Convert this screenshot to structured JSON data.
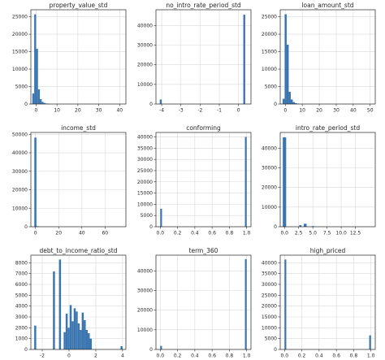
{
  "figure": {
    "bar_color": "#3b75af",
    "grid_color": "#d9d9d9",
    "axes_edge_color": "#262626",
    "layout": "3x3 grid of histograms",
    "grid": true
  },
  "chart_data": [
    {
      "type": "bar",
      "title": "property_value_std",
      "xlabel": "",
      "ylabel": "",
      "xlim": [
        -2.5,
        43
      ],
      "ylim": [
        0,
        27000
      ],
      "xticks": [
        0,
        10,
        20,
        30,
        40
      ],
      "yticks": [
        0,
        5000,
        10000,
        15000,
        20000,
        25000
      ],
      "bins": [
        {
          "x0": -1.8,
          "x1": -0.9,
          "value": 3000
        },
        {
          "x0": -0.9,
          "x1": 0.0,
          "value": 25700
        },
        {
          "x0": 0.0,
          "x1": 0.9,
          "value": 15800
        },
        {
          "x0": 0.9,
          "x1": 1.8,
          "value": 4200
        },
        {
          "x0": 1.8,
          "x1": 2.7,
          "value": 1400
        },
        {
          "x0": 2.7,
          "x1": 3.6,
          "value": 600
        },
        {
          "x0": 3.6,
          "x1": 4.5,
          "value": 300
        },
        {
          "x0": 4.5,
          "x1": 5.4,
          "value": 150
        },
        {
          "x0": 5.4,
          "x1": 6.3,
          "value": 80
        }
      ]
    },
    {
      "type": "bar",
      "title": "no_intro_rate_period_std",
      "xlabel": "",
      "ylabel": "",
      "xlim": [
        -4.3,
        0.65
      ],
      "ylim": [
        0,
        48000
      ],
      "xticks": [
        -4,
        -3,
        -2,
        -1,
        0
      ],
      "yticks": [
        0,
        10000,
        20000,
        30000,
        40000
      ],
      "bins": [
        {
          "x0": -4.1,
          "x1": -4.0,
          "value": 2300
        },
        {
          "x0": 0.25,
          "x1": 0.35,
          "value": 45500
        }
      ]
    },
    {
      "type": "bar",
      "title": "loan_amount_std",
      "xlabel": "",
      "ylabel": "",
      "xlim": [
        -3,
        53
      ],
      "ylim": [
        0,
        27000
      ],
      "xticks": [
        0,
        10,
        20,
        30,
        40,
        50
      ],
      "yticks": [
        0,
        5000,
        10000,
        15000,
        20000,
        25000
      ],
      "bins": [
        {
          "x0": -1.6,
          "x1": -0.4,
          "value": 1500
        },
        {
          "x0": -0.4,
          "x1": 0.8,
          "value": 25700
        },
        {
          "x0": 0.8,
          "x1": 2.0,
          "value": 17000
        },
        {
          "x0": 2.0,
          "x1": 3.2,
          "value": 3500
        },
        {
          "x0": 3.2,
          "x1": 4.4,
          "value": 1300
        },
        {
          "x0": 4.4,
          "x1": 5.6,
          "value": 550
        },
        {
          "x0": 5.6,
          "x1": 6.8,
          "value": 250
        },
        {
          "x0": 6.8,
          "x1": 8.0,
          "value": 120
        }
      ]
    },
    {
      "type": "bar",
      "title": "income_std",
      "xlabel": "",
      "ylabel": "",
      "xlim": [
        -4,
        78
      ],
      "ylim": [
        0,
        51000
      ],
      "xticks": [
        0,
        20,
        40,
        60
      ],
      "yticks": [
        0,
        10000,
        20000,
        30000,
        40000,
        50000
      ],
      "bins": [
        {
          "x0": -1.0,
          "x1": 0.8,
          "value": 48200
        },
        {
          "x0": 0.8,
          "x1": 2.6,
          "value": 300
        }
      ]
    },
    {
      "type": "bar",
      "title": "conforming",
      "xlabel": "",
      "ylabel": "",
      "xlim": [
        -0.05,
        1.05
      ],
      "ylim": [
        0,
        42000
      ],
      "xticks": [
        0.0,
        0.2,
        0.4,
        0.6,
        0.8,
        1.0
      ],
      "tick_labels": [
        "0.0",
        "0.2",
        "0.4",
        "0.6",
        "0.8",
        "1.0"
      ],
      "yticks": [
        0,
        5000,
        10000,
        15000,
        20000,
        25000,
        30000,
        35000,
        40000
      ],
      "bins": [
        {
          "x0": 0.0,
          "x1": 0.02,
          "value": 8000
        },
        {
          "x0": 0.98,
          "x1": 1.0,
          "value": 40000
        }
      ]
    },
    {
      "type": "bar",
      "title": "intro_rate_period_std",
      "xlabel": "",
      "ylabel": "",
      "xlim": [
        -0.75,
        16
      ],
      "ylim": [
        0,
        48000
      ],
      "xticks": [
        0.0,
        2.5,
        5.0,
        7.5,
        10.0,
        12.5
      ],
      "tick_labels": [
        "0.0",
        "2.5",
        "5.0",
        "7.5",
        "10.0",
        "12.5"
      ],
      "yticks": [
        0,
        10000,
        20000,
        30000,
        40000
      ],
      "bins": [
        {
          "x0": -0.3,
          "x1": 0.3,
          "value": 45500
        },
        {
          "x0": 2.6,
          "x1": 3.0,
          "value": 800
        },
        {
          "x0": 3.4,
          "x1": 3.9,
          "value": 1500
        },
        {
          "x0": 4.8,
          "x1": 5.2,
          "value": 300
        }
      ]
    },
    {
      "type": "bar",
      "title": "debt_to_income_ratio_std",
      "xlabel": "",
      "ylabel": "",
      "xlim": [
        -2.85,
        4.25
      ],
      "ylim": [
        0,
        8700
      ],
      "xticks": [
        -2,
        0,
        2,
        4
      ],
      "yticks": [
        0,
        1000,
        2000,
        3000,
        4000,
        5000,
        6000,
        7000,
        8000
      ],
      "bins": [
        {
          "x0": -2.6,
          "x1": -2.45,
          "value": 2200
        },
        {
          "x0": -1.2,
          "x1": -1.05,
          "value": 7200
        },
        {
          "x0": -0.75,
          "x1": -0.6,
          "value": 8300
        },
        {
          "x0": -0.4,
          "x1": -0.25,
          "value": 1600
        },
        {
          "x0": -0.25,
          "x1": -0.1,
          "value": 3300
        },
        {
          "x0": -0.1,
          "x1": 0.05,
          "value": 2000
        },
        {
          "x0": 0.05,
          "x1": 0.2,
          "value": 4100
        },
        {
          "x0": 0.2,
          "x1": 0.35,
          "value": 2600
        },
        {
          "x0": 0.35,
          "x1": 0.5,
          "value": 3800
        },
        {
          "x0": 0.5,
          "x1": 0.65,
          "value": 3500
        },
        {
          "x0": 0.65,
          "x1": 0.8,
          "value": 2400
        },
        {
          "x0": 0.8,
          "x1": 0.95,
          "value": 1800
        },
        {
          "x0": 0.95,
          "x1": 1.1,
          "value": 3400
        },
        {
          "x0": 1.1,
          "x1": 1.25,
          "value": 2700
        },
        {
          "x0": 1.25,
          "x1": 1.4,
          "value": 1800
        },
        {
          "x0": 1.4,
          "x1": 1.55,
          "value": 1500
        },
        {
          "x0": 1.55,
          "x1": 1.7,
          "value": 1000
        },
        {
          "x0": 3.85,
          "x1": 4.0,
          "value": 300
        }
      ]
    },
    {
      "type": "bar",
      "title": "term_360",
      "xlabel": "",
      "ylabel": "",
      "xlim": [
        -0.05,
        1.05
      ],
      "ylim": [
        0,
        48000
      ],
      "xticks": [
        0.0,
        0.2,
        0.4,
        0.6,
        0.8,
        1.0
      ],
      "tick_labels": [
        "0.0",
        "0.2",
        "0.4",
        "0.6",
        "0.8",
        "1.0"
      ],
      "yticks": [
        0,
        10000,
        20000,
        30000,
        40000
      ],
      "bins": [
        {
          "x0": 0.0,
          "x1": 0.02,
          "value": 1800
        },
        {
          "x0": 0.98,
          "x1": 1.0,
          "value": 46000
        }
      ]
    },
    {
      "type": "bar",
      "title": "high_priced",
      "xlabel": "",
      "ylabel": "",
      "xlim": [
        -0.05,
        1.05
      ],
      "ylim": [
        0,
        43500
      ],
      "xticks": [
        0.0,
        0.2,
        0.4,
        0.6,
        0.8,
        1.0
      ],
      "tick_labels": [
        "0.0",
        "0.2",
        "0.4",
        "0.6",
        "0.8",
        "1.0"
      ],
      "yticks": [
        0,
        5000,
        10000,
        15000,
        20000,
        25000,
        30000,
        35000,
        40000
      ],
      "bins": [
        {
          "x0": 0.0,
          "x1": 0.02,
          "value": 41500
        },
        {
          "x0": 0.98,
          "x1": 1.0,
          "value": 6500
        }
      ]
    }
  ]
}
